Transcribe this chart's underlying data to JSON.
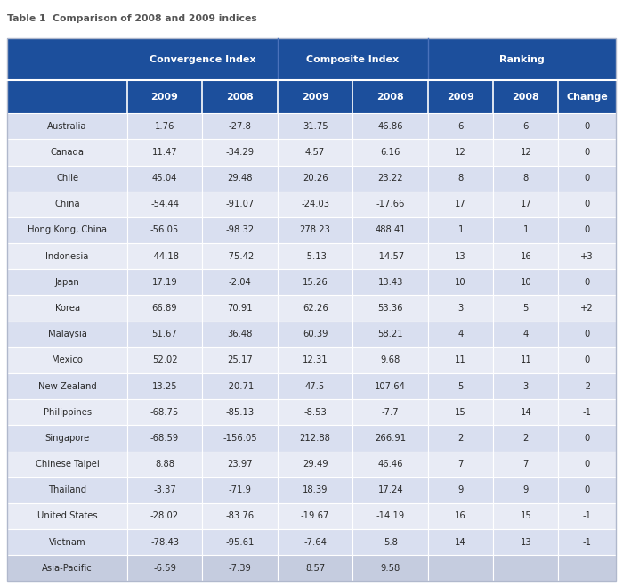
{
  "title": "Table 1  Comparison of 2008 and 2009 indices",
  "header_bg": "#1c4f9c",
  "header_text": "#ffffff",
  "row_bg_odd": "#d9dff0",
  "row_bg_even": "#e8ebf5",
  "last_row_bg": "#c5ccdf",
  "border_color": "#ffffff",
  "text_color": "#2a2a2a",
  "col_groups": [
    "Convergence Index",
    "Composite Index",
    "Ranking"
  ],
  "col_subheaders": [
    "2009",
    "2008",
    "2009",
    "2008",
    "2009",
    "2008",
    "Change"
  ],
  "countries": [
    "Australia",
    "Canada",
    "Chile",
    "China",
    "Hong Kong, China",
    "Indonesia",
    "Japan",
    "Korea",
    "Malaysia",
    "Mexico",
    "New Zealand",
    "Philippines",
    "Singapore",
    "Chinese Taipei",
    "Thailand",
    "United States",
    "Vietnam",
    "Asia-Pacific"
  ],
  "convergence_2009": [
    "1.76",
    "11.47",
    "45.04",
    "-54.44",
    "-56.05",
    "-44.18",
    "17.19",
    "66.89",
    "51.67",
    "52.02",
    "13.25",
    "-68.75",
    "-68.59",
    "8.88",
    "-3.37",
    "-28.02",
    "-78.43",
    "-6.59"
  ],
  "convergence_2008": [
    "-27.8",
    "-34.29",
    "29.48",
    "-91.07",
    "-98.32",
    "-75.42",
    "-2.04",
    "70.91",
    "36.48",
    "25.17",
    "-20.71",
    "-85.13",
    "-156.05",
    "23.97",
    "-71.9",
    "-83.76",
    "-95.61",
    "-7.39"
  ],
  "composite_2009": [
    "31.75",
    "4.57",
    "20.26",
    "-24.03",
    "278.23",
    "-5.13",
    "15.26",
    "62.26",
    "60.39",
    "12.31",
    "47.5",
    "-8.53",
    "212.88",
    "29.49",
    "18.39",
    "-19.67",
    "-7.64",
    "8.57"
  ],
  "composite_2008": [
    "46.86",
    "6.16",
    "23.22",
    "-17.66",
    "488.41",
    "-14.57",
    "13.43",
    "53.36",
    "58.21",
    "9.68",
    "107.64",
    "-7.7",
    "266.91",
    "46.46",
    "17.24",
    "-14.19",
    "5.8",
    "9.58"
  ],
  "ranking_2009": [
    "6",
    "12",
    "8",
    "17",
    "1",
    "13",
    "10",
    "3",
    "4",
    "11",
    "5",
    "15",
    "2",
    "7",
    "9",
    "16",
    "14",
    ""
  ],
  "ranking_2008": [
    "6",
    "12",
    "8",
    "17",
    "1",
    "16",
    "10",
    "5",
    "4",
    "11",
    "3",
    "14",
    "2",
    "7",
    "9",
    "15",
    "13",
    ""
  ],
  "ranking_change": [
    "0",
    "0",
    "0",
    "0",
    "0",
    "+3",
    "0",
    "+2",
    "0",
    "0",
    "-2",
    "-1",
    "0",
    "0",
    "0",
    "-1",
    "-1",
    ""
  ]
}
